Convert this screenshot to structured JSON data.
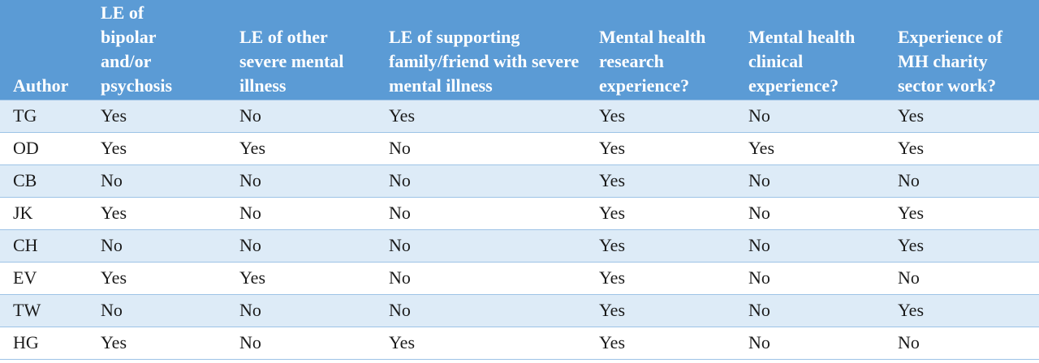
{
  "table": {
    "headers": [
      "Author",
      "LE of bipolar and/or psychosis",
      "LE of other severe mental illness",
      "LE of supporting family/friend with severe mental illness",
      "Mental health research experience?",
      "Mental health clinical experience?",
      "Experience of MH charity sector work?"
    ],
    "rows": [
      [
        "TG",
        "Yes",
        "No",
        "Yes",
        "Yes",
        "No",
        "Yes"
      ],
      [
        "OD",
        "Yes",
        "Yes",
        "No",
        "Yes",
        "Yes",
        "Yes"
      ],
      [
        "CB",
        "No",
        "No",
        "No",
        "Yes",
        "No",
        "No"
      ],
      [
        "JK",
        "Yes",
        "No",
        "No",
        "Yes",
        "No",
        "Yes"
      ],
      [
        "CH",
        "No",
        "No",
        "No",
        "Yes",
        "No",
        "Yes"
      ],
      [
        "EV",
        "Yes",
        "Yes",
        "No",
        "Yes",
        "No",
        "No"
      ],
      [
        "TW",
        "No",
        "No",
        "No",
        "Yes",
        "No",
        "Yes"
      ],
      [
        "HG",
        "Yes",
        "No",
        "Yes",
        "Yes",
        "No",
        "No"
      ]
    ]
  },
  "colors": {
    "header_bg": "#5b9bd5",
    "band_bg": "#ddebf7",
    "rule": "#9dc3e6"
  }
}
